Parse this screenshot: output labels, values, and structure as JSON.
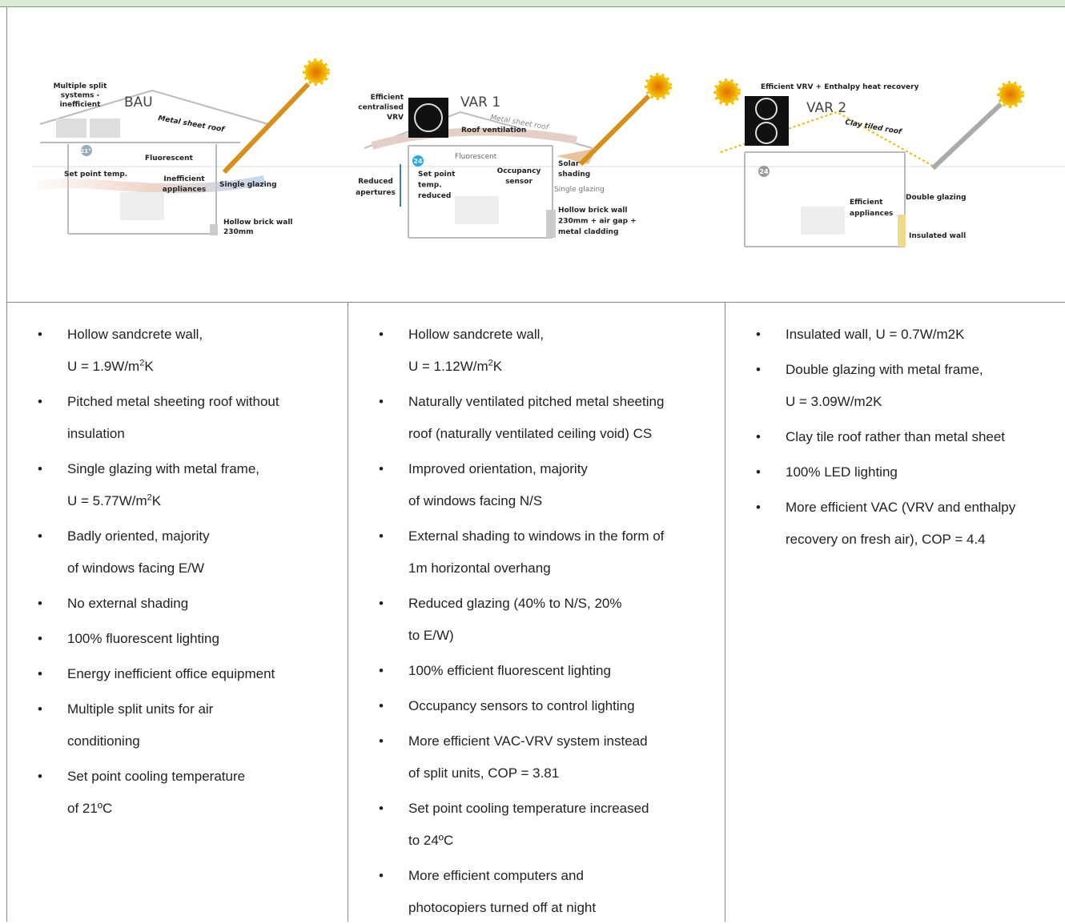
{
  "diagrams": [
    {
      "title": "BAU",
      "labels": [
        [
          "Multiple split",
          "systems -",
          "inefficient"
        ],
        [
          "Metal sheet roof"
        ],
        [
          "21°"
        ],
        [
          "Fluorescent"
        ],
        [
          "Set point temp."
        ],
        [
          "Inefficient",
          "appliances"
        ],
        [
          "Single glazing"
        ],
        [
          "Hollow brick wall",
          "230mm"
        ]
      ]
    },
    {
      "title": "VAR 1",
      "labels": [
        [
          "Efficient",
          "centralised",
          "VRV"
        ],
        [
          "Metal sheet roof"
        ],
        [
          "Roof ventilation"
        ],
        [
          "Fluorescent"
        ],
        [
          "24"
        ],
        [
          "Set point",
          "temp.",
          "reduced"
        ],
        [
          "Occupancy",
          "sensor"
        ],
        [
          "Solar",
          "shading"
        ],
        [
          "Reduced",
          "apertures"
        ],
        [
          "Single glazing"
        ],
        [
          "Hollow brick wall",
          "230mm + air gap +",
          "metal cladding"
        ]
      ]
    },
    {
      "title": "VAR 2",
      "labels": [
        [
          "Efficient VRV + Enthalpy heat recovery"
        ],
        [
          "Clay tiled roof"
        ],
        [
          "24"
        ],
        [
          "Efficient",
          "appliances"
        ],
        [
          "Double glazing"
        ],
        [
          "Insulated wall"
        ]
      ]
    }
  ],
  "columns": [
    [
      [
        "Hollow sandcrete wall,",
        {
          "pre": "U = 1.9W/m",
          "sup": "2",
          "post": "K"
        }
      ],
      [
        "Pitched metal sheeting roof without",
        "insulation"
      ],
      [
        "Single glazing with metal frame,",
        {
          "pre": "U = 5.77W/m",
          "sup": "2",
          "post": "K"
        }
      ],
      [
        "Badly oriented, majority",
        "of windows facing E/W"
      ],
      [
        "No external shading"
      ],
      [
        "100% fluorescent lighting"
      ],
      [
        "Energy inefficient office equipment"
      ],
      [
        "Multiple split units for air",
        "conditioning"
      ],
      [
        "Set point cooling temperature",
        "of 21ºC"
      ]
    ],
    [
      [
        "Hollow sandcrete wall,",
        {
          "pre": "U = 1.12W/m",
          "sup": "2",
          "post": "K"
        }
      ],
      [
        "Naturally ventilated pitched metal sheeting",
        "roof (naturally ventilated ceiling void) CS"
      ],
      [
        "Improved orientation, majority",
        "of windows facing N/S"
      ],
      [
        "External shading to windows in the form of",
        "1m horizontal overhang"
      ],
      [
        "Reduced glazing (40% to N/S, 20%",
        "to E/W)"
      ],
      [
        "100% efficient fluorescent lighting"
      ],
      [
        "Occupancy sensors to control lighting"
      ],
      [
        "More efficient VAC-VRV system instead",
        "of split units, COP = 3.81"
      ],
      [
        "Set point cooling temperature increased",
        "to 24ºC"
      ],
      [
        "More efficient computers and",
        "photocopiers turned off at night"
      ]
    ],
    [
      [
        "Insulated wall, U = 0.7W/m2K"
      ],
      [
        "Double glazing with metal frame,",
        "U = 3.09W/m2K"
      ],
      [
        "Clay tile roof rather than metal sheet"
      ],
      [
        "100% LED lighting"
      ],
      [
        "More efficient VAC (VRV and enthalpy",
        "recovery on fresh air), COP = 4.4"
      ]
    ]
  ]
}
